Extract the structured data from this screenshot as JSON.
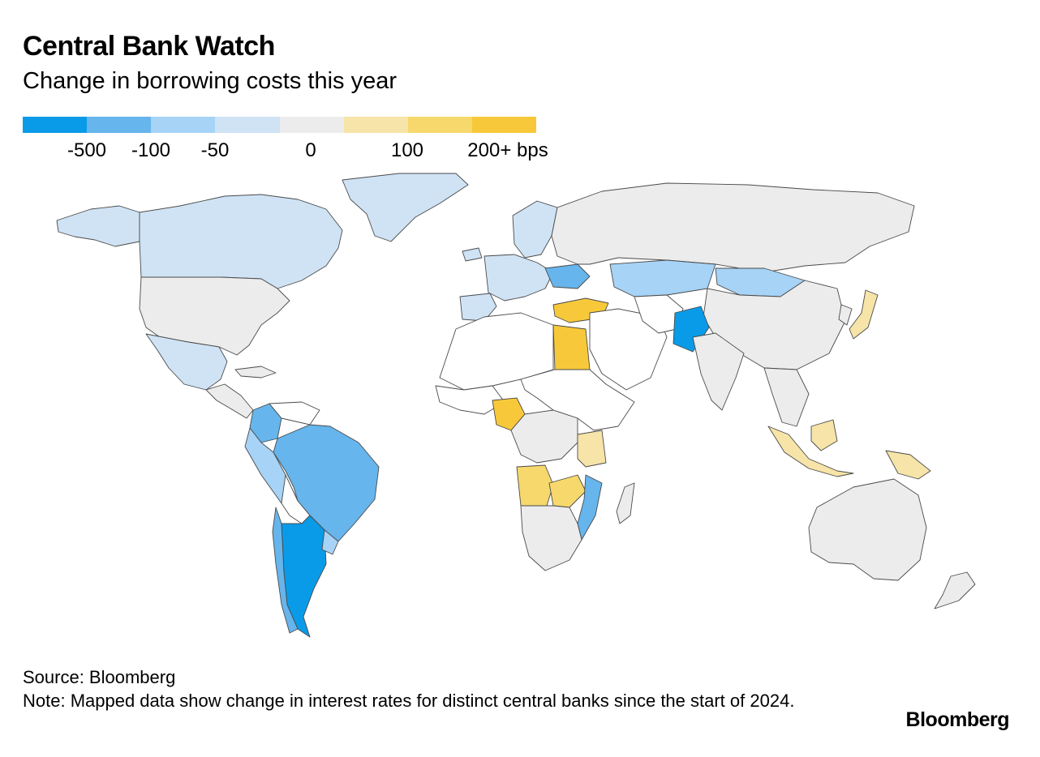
{
  "title": "Central Bank Watch",
  "subtitle": "Change in borrowing costs this year",
  "legend": {
    "swatches": [
      "#0a9be8",
      "#66b5ec",
      "#a6d3f6",
      "#cfe3f5",
      "#ececec",
      "#f6e4a8",
      "#f6d86c",
      "#f7c93a"
    ],
    "labels": [
      "-500",
      "-100",
      "-50",
      "0",
      "100",
      "200+ bps"
    ]
  },
  "colors": {
    "no_data": "#ffffff",
    "zero": "#ececec",
    "neg_500": "#0a9be8",
    "neg_100": "#66b5ec",
    "neg_50": "#a6d3f6",
    "neg_small": "#cfe3f5",
    "pos_small": "#f6e4a8",
    "pos_100": "#f6d86c",
    "pos_200": "#f7c93a"
  },
  "source": "Source: Bloomberg",
  "note": "Note: Mapped data show change in interest rates for distinct central banks since the start of 2024.",
  "brand": "Bloomberg"
}
